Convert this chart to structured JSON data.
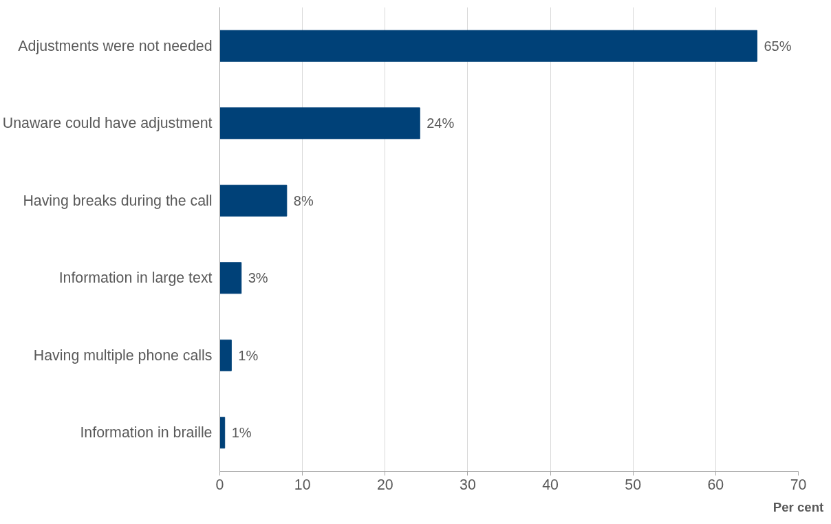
{
  "chart_data": {
    "type": "bar",
    "orientation": "horizontal",
    "categories": [
      "Adjustments were not needed",
      "Unaware could have adjustment",
      "Having breaks during the call",
      "Information in large text",
      "Having multiple phone calls",
      "Information in braille"
    ],
    "values": [
      65,
      24.2,
      8.1,
      2.6,
      1.4,
      0.6
    ],
    "value_labels": [
      "65%",
      "24%",
      "8%",
      "3%",
      "1%",
      "1%"
    ],
    "color": "#004178",
    "xlabel": "Per cent",
    "xlim": [
      0,
      70
    ],
    "xticks": [
      0,
      10,
      20,
      30,
      40,
      50,
      60,
      70
    ],
    "grid": "x"
  }
}
